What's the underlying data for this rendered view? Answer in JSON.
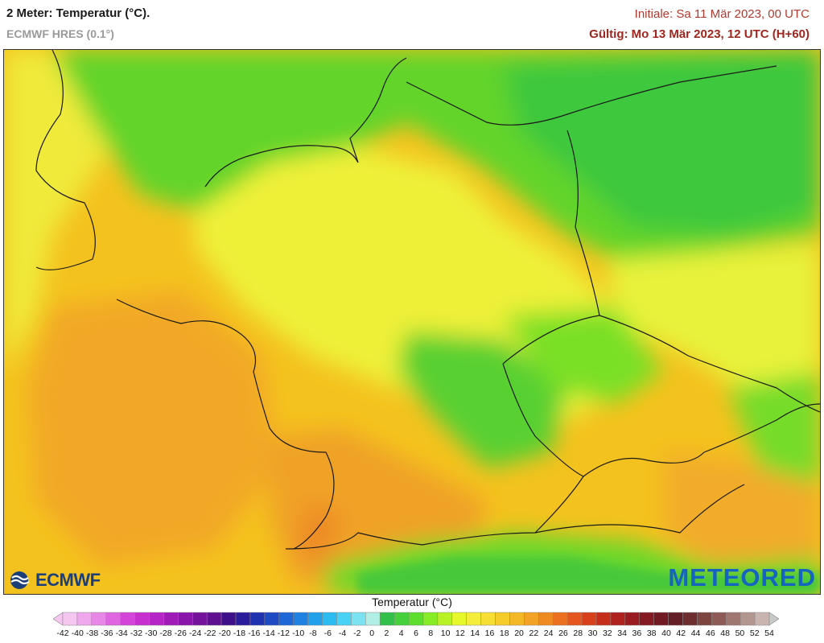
{
  "header": {
    "title": "2 Meter: Temperatur (°C).",
    "model": "ECMWF HRES (0.1°)",
    "init": "Initiale: Sa 11 Mär 2023, 00 UTC",
    "valid": "Gültig: Mo 13 Mär 2023, 12 UTC (H+60)"
  },
  "logos": {
    "left": "ECMWF",
    "right": "METEORED"
  },
  "legend": {
    "title": "Temperatur (°C)",
    "labels": [
      "-42",
      "-40",
      "-38",
      "-36",
      "-34",
      "-32",
      "-30",
      "-28",
      "-26",
      "-24",
      "-22",
      "-20",
      "-18",
      "-16",
      "-14",
      "-12",
      "-10",
      "-8",
      "-6",
      "-4",
      "-2",
      "0",
      "2",
      "4",
      "6",
      "8",
      "10",
      "12",
      "14",
      "16",
      "18",
      "20",
      "22",
      "24",
      "26",
      "28",
      "30",
      "32",
      "34",
      "36",
      "38",
      "40",
      "42",
      "44",
      "46",
      "48",
      "50",
      "52",
      "54"
    ],
    "colors": [
      "#f5c6f0",
      "#f0a8ec",
      "#e888e6",
      "#df66de",
      "#d444d8",
      "#c72fcf",
      "#b623c6",
      "#a01ab8",
      "#8a15aa",
      "#74129c",
      "#5e1090",
      "#3d0f88",
      "#2a1c9a",
      "#1f32b0",
      "#1e4bc4",
      "#1f66d6",
      "#1f82e2",
      "#22a0ec",
      "#2cbcf2",
      "#49d2f4",
      "#7ae2f0",
      "#b0eee6",
      "#33c04a",
      "#46d03c",
      "#5ede2e",
      "#86ec26",
      "#b8f224",
      "#e6f82a",
      "#f4ee3a",
      "#f6de32",
      "#f6cc2a",
      "#f4b826",
      "#f2a224",
      "#ef8a22",
      "#eb7020",
      "#e4561e",
      "#d8401c",
      "#c62e1c",
      "#b0221e",
      "#9a1c20",
      "#861a22",
      "#721a24",
      "#641e26",
      "#6e2e30",
      "#7e4440",
      "#8e5a56",
      "#a07670",
      "#b49690",
      "#cab4b0"
    ]
  }
}
